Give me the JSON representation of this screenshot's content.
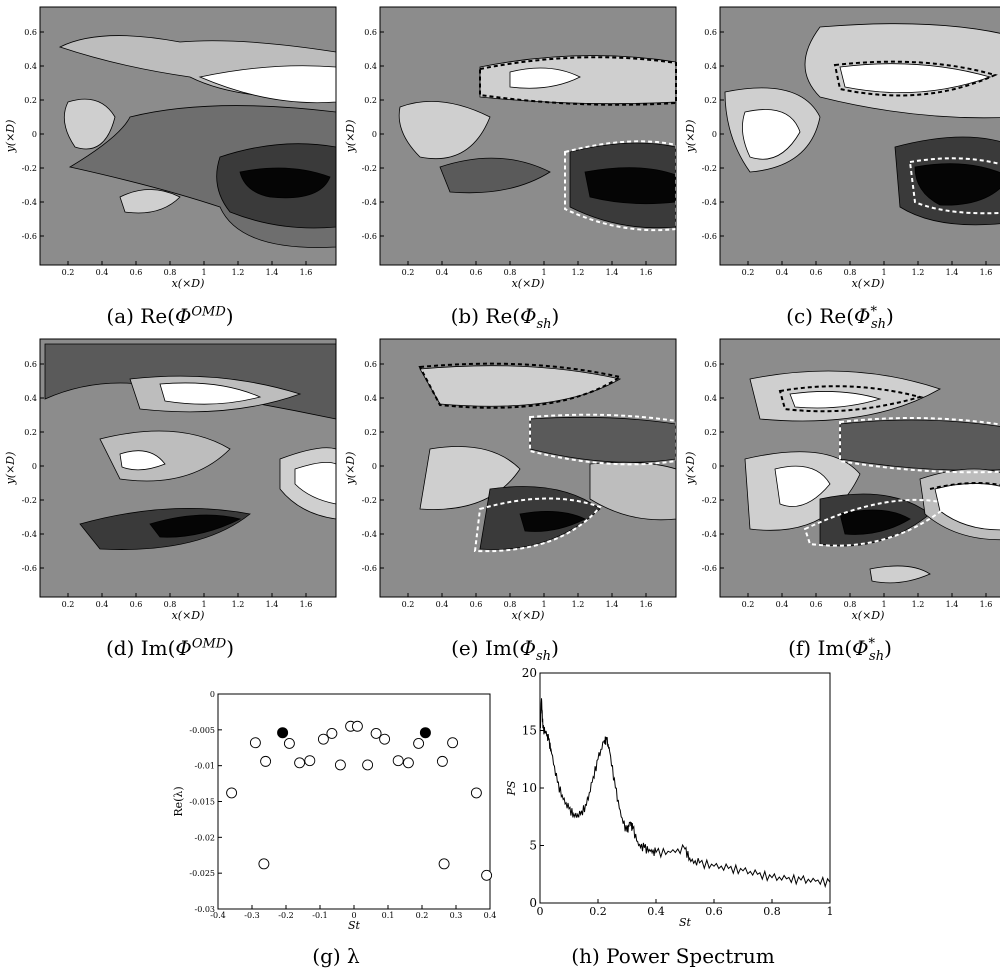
{
  "contour_panels": [
    {
      "id": "a",
      "caption_prefix": "(a)",
      "fn": "Re",
      "sym": "Φ",
      "sup": "OMD",
      "sub": "",
      "star": "",
      "xlabel": "x(×D)",
      "ylabel": "y(×D)"
    },
    {
      "id": "b",
      "caption_prefix": "(b)",
      "fn": "Re",
      "sym": "Φ",
      "sup": "",
      "sub": "sh",
      "star": "",
      "xlabel": "x(×D)",
      "ylabel": "y(×D)"
    },
    {
      "id": "c",
      "caption_prefix": "(c)",
      "fn": "Re",
      "sym": "Φ",
      "sup": "",
      "sub": "sh",
      "star": "*",
      "xlabel": "x(×D)",
      "ylabel": "y(×D)"
    },
    {
      "id": "d",
      "caption_prefix": "(d)",
      "fn": "Im",
      "sym": "Φ",
      "sup": "OMD",
      "sub": "",
      "star": "",
      "xlabel": "x(×D)",
      "ylabel": "y(×D)"
    },
    {
      "id": "e",
      "caption_prefix": "(e)",
      "fn": "Im",
      "sym": "Φ",
      "sup": "",
      "sub": "sh",
      "star": "",
      "xlabel": "x(×D)",
      "ylabel": "y(×D)"
    },
    {
      "id": "f",
      "caption_prefix": "(f)",
      "fn": "Im",
      "sym": "Φ",
      "sup": "",
      "sub": "sh",
      "star": "*",
      "xlabel": "x(×D)",
      "ylabel": "y(×D)"
    }
  ],
  "contour_axes": {
    "x_ticks": [
      "0.2",
      "0.4",
      "0.6",
      "0.8",
      "1",
      "1.2",
      "1.4",
      "1.6"
    ],
    "y_ticks": [
      "0.6",
      "0.4",
      "0.2",
      "0",
      "-0.2",
      "-0.4",
      "-0.6"
    ]
  },
  "captions": {
    "g": "(g) λ",
    "h": "(h) Power Spectrum"
  },
  "chart_data": [
    {
      "type": "scatter",
      "id": "g",
      "xlabel": "St",
      "ylabel": "Re(λ)",
      "xlim": [
        -0.4,
        0.4
      ],
      "ylim": [
        -0.03,
        0
      ],
      "x_ticks": [
        "-0.4",
        "-0.3",
        "-0.2",
        "-0.1",
        "0",
        "0.1",
        "0.2",
        "0.3",
        "0.4"
      ],
      "y_ticks": [
        "0",
        "-0.005",
        "-0.01",
        "-0.015",
        "-0.02",
        "-0.025",
        "-0.03"
      ],
      "points_open": [
        [
          -0.36,
          -0.0138
        ],
        [
          -0.29,
          -0.0068
        ],
        [
          -0.265,
          -0.0237
        ],
        [
          -0.26,
          -0.0094
        ],
        [
          -0.19,
          -0.0069
        ],
        [
          -0.16,
          -0.0096
        ],
        [
          -0.13,
          -0.0093
        ],
        [
          -0.09,
          -0.0063
        ],
        [
          -0.065,
          -0.0055
        ],
        [
          -0.04,
          -0.0099
        ],
        [
          -0.01,
          -0.0045
        ],
        [
          0.01,
          -0.0045
        ],
        [
          0.04,
          -0.0099
        ],
        [
          0.065,
          -0.0055
        ],
        [
          0.09,
          -0.0063
        ],
        [
          0.13,
          -0.0093
        ],
        [
          0.16,
          -0.0096
        ],
        [
          0.19,
          -0.0069
        ],
        [
          0.26,
          -0.0094
        ],
        [
          0.265,
          -0.0237
        ],
        [
          0.29,
          -0.0068
        ],
        [
          0.36,
          -0.0138
        ],
        [
          0.39,
          -0.0253
        ]
      ],
      "points_filled": [
        [
          -0.21,
          -0.0054
        ],
        [
          0.21,
          -0.0054
        ]
      ]
    },
    {
      "type": "line",
      "id": "h",
      "xlabel": "St",
      "ylabel": "PS",
      "xlim": [
        0,
        1
      ],
      "ylim": [
        0,
        20
      ],
      "x_ticks": [
        "0",
        "0.2",
        "0.4",
        "0.6",
        "0.8",
        "1"
      ],
      "y_ticks": [
        "0",
        "5",
        "10",
        "15",
        "20"
      ],
      "x": [
        0,
        0.005,
        0.01,
        0.02,
        0.03,
        0.04,
        0.06,
        0.08,
        0.1,
        0.12,
        0.14,
        0.16,
        0.18,
        0.2,
        0.22,
        0.23,
        0.24,
        0.26,
        0.28,
        0.3,
        0.31,
        0.32,
        0.34,
        0.36,
        0.38,
        0.4,
        0.45,
        0.5,
        0.52,
        0.55,
        0.6,
        0.65,
        0.7,
        0.75,
        0.8,
        0.85,
        0.9,
        0.95,
        1.0
      ],
      "y": [
        14.5,
        17.8,
        15.2,
        14.8,
        14.2,
        13.0,
        10.5,
        9.0,
        8.2,
        7.5,
        7.7,
        8.5,
        10.5,
        12.5,
        14.0,
        14.2,
        13.2,
        10.0,
        7.5,
        6.2,
        7.0,
        6.5,
        5.0,
        4.8,
        4.5,
        4.4,
        4.4,
        4.7,
        3.6,
        3.5,
        3.2,
        3.0,
        2.8,
        2.5,
        2.2,
        2.1,
        2.0,
        1.9,
        1.8
      ]
    }
  ]
}
